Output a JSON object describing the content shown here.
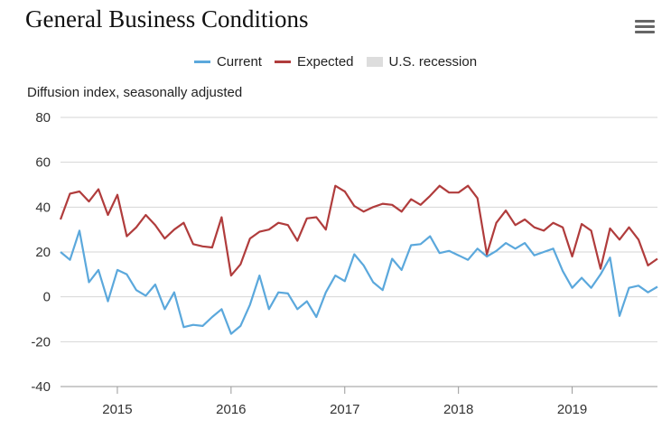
{
  "title": "General Business Conditions",
  "menu_icon": "hamburger-menu-icon",
  "chart_data": {
    "type": "line",
    "title": "General Business Conditions",
    "ylabel": "Diffusion index, seasonally adjusted",
    "xlabel": "",
    "ylim": [
      -40,
      80
    ],
    "yticks": [
      80,
      60,
      40,
      20,
      0,
      -20,
      -40
    ],
    "xticks": [
      "2015",
      "2016",
      "2017",
      "2018",
      "2019"
    ],
    "xrange": [
      "2014-07",
      "2019-10"
    ],
    "grid": true,
    "legend_position": "top-center",
    "legend": [
      {
        "name": "Current",
        "color": "#5ba8dc",
        "kind": "line"
      },
      {
        "name": "Expected",
        "color": "#b03c3c",
        "kind": "line"
      },
      {
        "name": "U.S. recession",
        "color": "#dddddd",
        "kind": "box"
      }
    ],
    "x": [
      "2014-07",
      "2014-08",
      "2014-09",
      "2014-10",
      "2014-11",
      "2014-12",
      "2015-01",
      "2015-02",
      "2015-03",
      "2015-04",
      "2015-05",
      "2015-06",
      "2015-07",
      "2015-08",
      "2015-09",
      "2015-10",
      "2015-11",
      "2015-12",
      "2016-01",
      "2016-02",
      "2016-03",
      "2016-04",
      "2016-05",
      "2016-06",
      "2016-07",
      "2016-08",
      "2016-09",
      "2016-10",
      "2016-11",
      "2016-12",
      "2017-01",
      "2017-02",
      "2017-03",
      "2017-04",
      "2017-05",
      "2017-06",
      "2017-07",
      "2017-08",
      "2017-09",
      "2017-10",
      "2017-11",
      "2017-12",
      "2018-01",
      "2018-02",
      "2018-03",
      "2018-04",
      "2018-05",
      "2018-06",
      "2018-07",
      "2018-08",
      "2018-09",
      "2018-10",
      "2018-11",
      "2018-12",
      "2019-01",
      "2019-02",
      "2019-03",
      "2019-04",
      "2019-05",
      "2019-06",
      "2019-07",
      "2019-08",
      "2019-09",
      "2019-10"
    ],
    "series": [
      {
        "name": "Current",
        "color": "#5ba8dc",
        "values": [
          20,
          16.5,
          29.5,
          6.5,
          12,
          -2,
          12,
          10,
          3,
          0.5,
          5.5,
          -5.5,
          2,
          -13.5,
          -12.5,
          -13,
          -9,
          -5.5,
          -16.5,
          -13,
          -3.5,
          9.5,
          -5.5,
          2,
          1.5,
          -5.5,
          -2,
          -9,
          2,
          9.5,
          7,
          19,
          14,
          6.5,
          3,
          17,
          12,
          23,
          23.5,
          27,
          19.5,
          20.5,
          18.5,
          16.5,
          21.5,
          18,
          20.5,
          24,
          21.5,
          24,
          18.5,
          20,
          21.5,
          11.5,
          4,
          8.5,
          4,
          10,
          17.5,
          -8.5,
          4,
          5,
          2,
          4.5
        ]
      },
      {
        "name": "Expected",
        "color": "#b03c3c",
        "values": [
          34.5,
          46,
          47,
          42.5,
          48,
          36.5,
          45.5,
          27,
          31,
          36.5,
          32,
          26,
          30,
          33,
          23.5,
          22.5,
          22,
          35.5,
          9.5,
          14.5,
          26,
          29,
          30,
          33,
          32,
          25,
          35,
          35.5,
          30,
          49.5,
          47,
          40.5,
          38,
          40,
          41.5,
          41,
          38,
          43.5,
          41,
          45,
          49.5,
          46.5,
          46.5,
          49.5,
          44,
          19,
          33,
          38.5,
          32,
          34.5,
          31,
          29.5,
          33,
          31,
          18,
          32.5,
          29.5,
          12.5,
          30.5,
          25.5,
          31,
          25.5,
          14,
          17
        ]
      }
    ]
  }
}
